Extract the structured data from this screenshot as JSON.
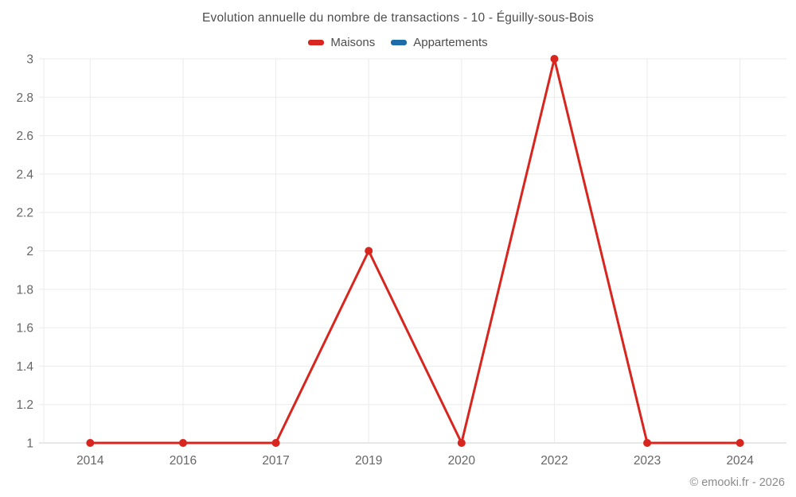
{
  "header": {
    "title": "Evolution annuelle du nombre de transactions - 10 - Éguilly-sous-Bois"
  },
  "legend": {
    "items": [
      {
        "label": "Maisons",
        "color": "#d8261f"
      },
      {
        "label": "Appartements",
        "color": "#1b6ca8"
      }
    ]
  },
  "footer": {
    "copyright": "© emooki.fr - 2026"
  },
  "chart_data": {
    "type": "line",
    "title": "Evolution annuelle du nombre de transactions - 10 - Éguilly-sous-Bois",
    "categories": [
      "2014",
      "2016",
      "2017",
      "2019",
      "2020",
      "2022",
      "2023",
      "2024"
    ],
    "series": [
      {
        "name": "Maisons",
        "color": "#d8261f",
        "values": [
          1,
          1,
          1,
          2,
          1,
          3,
          1,
          1
        ],
        "markers": true
      },
      {
        "name": "Appartements",
        "color": "#1b6ca8",
        "values": [],
        "markers": true
      }
    ],
    "xlabel": "",
    "ylabel": "",
    "ylim": [
      1,
      3
    ],
    "ytick_step": 0.2,
    "yticks": [
      "1",
      "1.2",
      "1.4",
      "1.6",
      "1.8",
      "2",
      "2.2",
      "2.4",
      "2.6",
      "2.8",
      "3"
    ],
    "grid": true,
    "legend_position": "top",
    "colors": {
      "grid_line": "#ebebeb",
      "axis_line": "#cfcfcf",
      "tick_label": "#666666",
      "title_text": "#4d4d4d",
      "copyright_text": "#8b8b8b"
    }
  }
}
